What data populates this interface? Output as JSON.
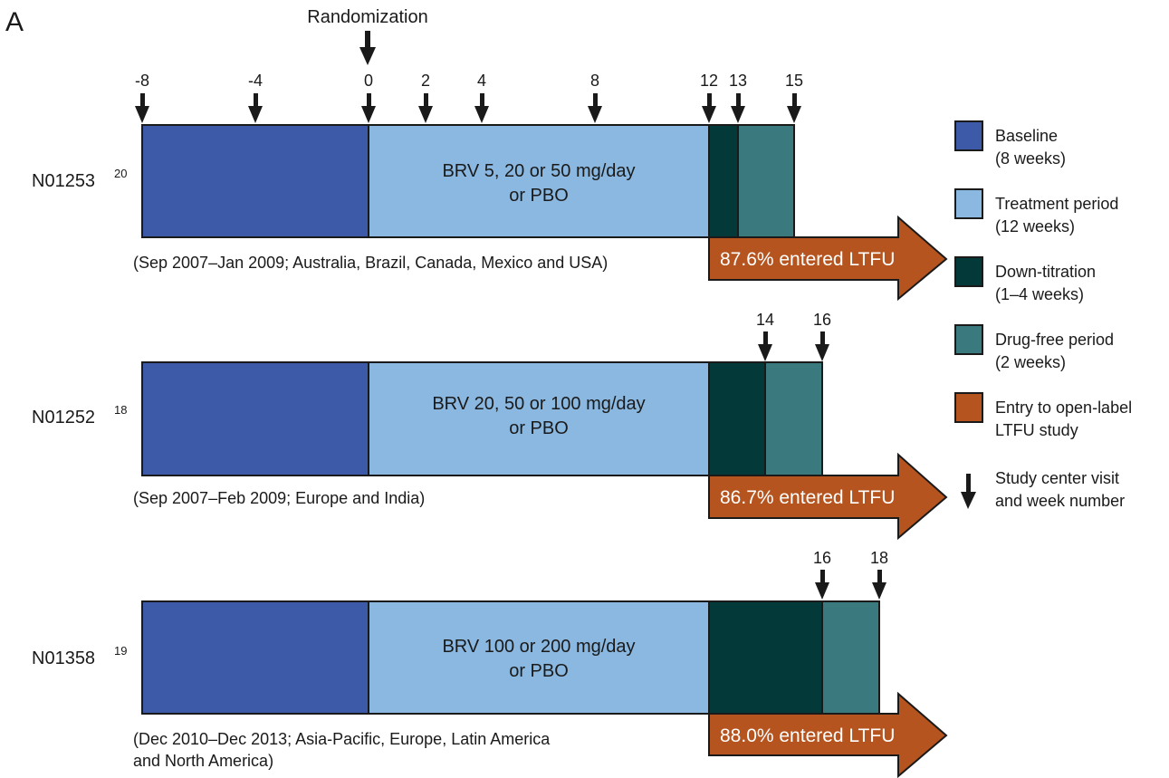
{
  "panel_label": "A",
  "randomization_label": "Randomization",
  "colors": {
    "baseline": "#3d5aa8",
    "treatment": "#8ab8e0",
    "down_titration": "#04393a",
    "drug_free": "#3a7a7e",
    "ltfu": "#b5541f"
  },
  "studies": [
    {
      "name": "N01253",
      "ref": "20",
      "treatment_text": [
        "BRV 5, 20 or 50 mg/day",
        "or PBO"
      ],
      "dates_text": [
        "(Sep 2007–Jan 2009; Australia, Brazil, Canada, Mexico and USA)"
      ],
      "ltfu_text": "87.6% entered LTFU",
      "visit_weeks": [
        "-8",
        "-4",
        "0",
        "2",
        "4",
        "8",
        "12",
        "13",
        "15"
      ]
    },
    {
      "name": "N01252",
      "ref": "18",
      "treatment_text": [
        "BRV 20, 50 or 100 mg/day",
        "or PBO"
      ],
      "dates_text": [
        "(Sep 2007–Feb 2009; Europe and India)"
      ],
      "ltfu_text": "86.7% entered LTFU",
      "visit_weeks": [
        "14",
        "16"
      ]
    },
    {
      "name": "N01358",
      "ref": "19",
      "treatment_text": [
        "BRV 100 or 200 mg/day",
        "or PBO"
      ],
      "dates_text": [
        "(Dec 2010–Dec 2013; Asia-Pacific, Europe, Latin America",
        "and North America)"
      ],
      "ltfu_text": "88.0% entered LTFU",
      "visit_weeks": [
        "16",
        "18"
      ]
    }
  ],
  "legend": [
    {
      "key": "baseline",
      "lines": [
        "Baseline",
        "(8 weeks)"
      ]
    },
    {
      "key": "treatment",
      "lines": [
        "Treatment period",
        "(12 weeks)"
      ]
    },
    {
      "key": "down_titration",
      "lines": [
        "Down-titration",
        "(1–4 weeks)"
      ]
    },
    {
      "key": "drug_free",
      "lines": [
        "Drug-free period",
        "(2 weeks)"
      ]
    },
    {
      "key": "ltfu",
      "lines": [
        "Entry to open-label",
        "LTFU study"
      ]
    },
    {
      "key": "visit_arrow",
      "lines": [
        "Study center visit",
        "and week number"
      ]
    }
  ]
}
